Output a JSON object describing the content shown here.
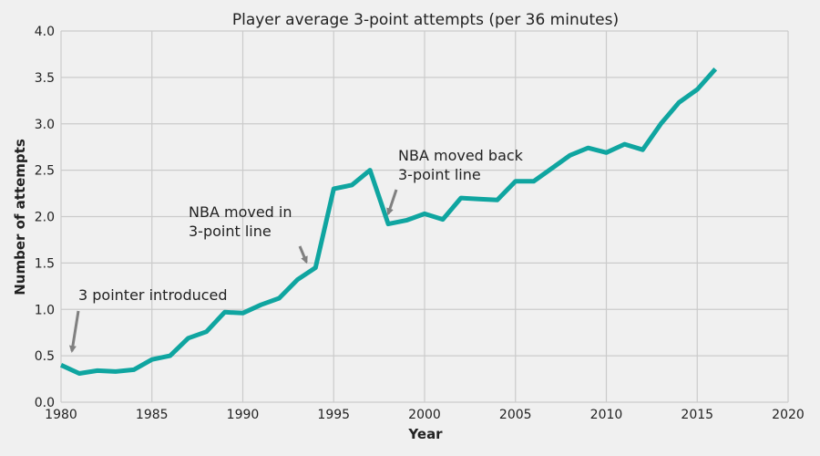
{
  "chart_data": {
    "type": "line",
    "title": "Player average 3-point attempts (per 36 minutes)",
    "xlabel": "Year",
    "ylabel": "Number of attempts",
    "xlim": [
      1980,
      2020
    ],
    "ylim": [
      0,
      4.0
    ],
    "xticks": [
      "1980",
      "1985",
      "1990",
      "1995",
      "2000",
      "2005",
      "2010",
      "2015",
      "2020"
    ],
    "yticks": [
      "0.0",
      "0.5",
      "1.0",
      "1.5",
      "2.0",
      "2.5",
      "3.0",
      "3.5",
      "4.0"
    ],
    "grid": true,
    "series": [
      {
        "color": "#0fa5a0",
        "x": [
          1980,
          1981,
          1982,
          1983,
          1984,
          1985,
          1986,
          1987,
          1988,
          1989,
          1990,
          1991,
          1992,
          1993,
          1994,
          1995,
          1996,
          1997,
          1998,
          1999,
          2000,
          2001,
          2002,
          2003,
          2004,
          2005,
          2006,
          2007,
          2008,
          2009,
          2010,
          2011,
          2012,
          2013,
          2014,
          2015,
          2016
        ],
        "y": [
          0.4,
          0.31,
          0.34,
          0.33,
          0.35,
          0.46,
          0.5,
          0.69,
          0.76,
          0.97,
          0.96,
          1.05,
          1.12,
          1.32,
          1.45,
          2.3,
          2.34,
          2.5,
          1.92,
          1.96,
          2.03,
          1.97,
          2.2,
          2.19,
          2.18,
          2.38,
          2.38,
          2.52,
          2.66,
          2.74,
          2.69,
          2.78,
          2.72,
          3.0,
          3.23,
          3.37,
          3.59
        ]
      }
    ],
    "annotations": [
      {
        "lines": [
          "3 pointer introduced"
        ],
        "arrow_to": [
          1980.6,
          0.55
        ]
      },
      {
        "lines": [
          "NBA moved in",
          "3-point line"
        ],
        "arrow_to": [
          1993.5,
          1.51
        ]
      },
      {
        "lines": [
          "NBA moved back",
          "3-point line"
        ],
        "arrow_to": [
          1998.0,
          2.03
        ]
      }
    ]
  }
}
